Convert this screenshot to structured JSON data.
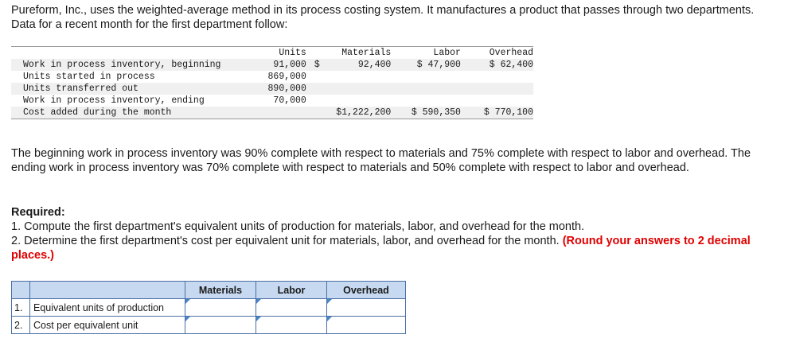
{
  "intro": "Pureform, Inc., uses the weighted-average method in its process costing system. It manufactures a product that passes through two departments. Data for a recent month for the first department follow:",
  "data_table": {
    "headers": {
      "units": "Units",
      "materials": "Materials",
      "labor": "Labor",
      "overhead": "Overhead"
    },
    "rows": [
      {
        "label": "Work in process inventory, beginning",
        "units": "91,000",
        "mat_dollar": "$",
        "materials": "92,400",
        "labor": "$ 47,900",
        "overhead": "$ 62,400"
      },
      {
        "label": "Units started in process",
        "units": "869,000",
        "mat_dollar": "",
        "materials": "",
        "labor": "",
        "overhead": ""
      },
      {
        "label": "Units transferred out",
        "units": "890,000",
        "mat_dollar": "",
        "materials": "",
        "labor": "",
        "overhead": ""
      },
      {
        "label": "Work in process inventory, ending",
        "units": "70,000",
        "mat_dollar": "",
        "materials": "",
        "labor": "",
        "overhead": ""
      },
      {
        "label": "Cost added during the month",
        "units": "",
        "mat_dollar": "",
        "materials": "$1,222,200",
        "labor": "$ 590,350",
        "overhead": "$ 770,100"
      }
    ]
  },
  "para2": "The beginning work in process inventory was 90% complete with respect to materials and 75% complete with respect to labor and overhead. The ending work in process inventory was 70% complete with respect to materials and 50% complete with respect to labor and overhead.",
  "required": {
    "title": "Required:",
    "item1": "1. Compute the first department's equivalent units of production for materials, labor, and overhead for the month.",
    "item2": "2. Determine the first department's cost per equivalent unit for materials, labor, and overhead for the month.",
    "item2_note": "(Round your answers to 2 decimal places.)"
  },
  "answer_table": {
    "headers": {
      "materials": "Materials",
      "labor": "Labor",
      "overhead": "Overhead"
    },
    "rows": [
      {
        "num": "1.",
        "label": "Equivalent units of production"
      },
      {
        "num": "2.",
        "label": "Cost per equivalent unit"
      }
    ]
  }
}
